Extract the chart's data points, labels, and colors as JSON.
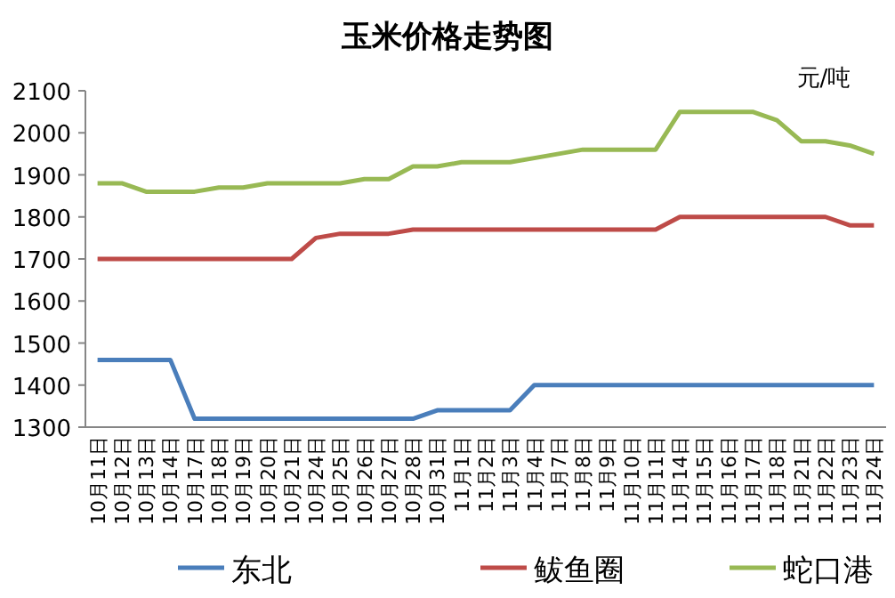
{
  "chart_data": {
    "type": "line",
    "title": "玉米价格走势图",
    "annotations": [
      "元/吨"
    ],
    "categories": [
      "10月11日",
      "10月12日",
      "10月13日",
      "10月14日",
      "10月17日",
      "10月18日",
      "10月19日",
      "10月20日",
      "10月21日",
      "10月24日",
      "10月25日",
      "10月26日",
      "10月27日",
      "10月28日",
      "10月31日",
      "11月1日",
      "11月2日",
      "11月3日",
      "11月4日",
      "11月7日",
      "11月8日",
      "11月9日",
      "11月10日",
      "11月11日",
      "11月14日",
      "11月15日",
      "11月16日",
      "11月17日",
      "11月18日",
      "11月21日",
      "11月22日",
      "11月23日",
      "11月24日"
    ],
    "series": [
      {
        "name": "东北",
        "color": "#4a7ebb",
        "values": [
          1460,
          1460,
          1460,
          1460,
          1320,
          1320,
          1320,
          1320,
          1320,
          1320,
          1320,
          1320,
          1320,
          1320,
          1340,
          1340,
          1340,
          1340,
          1400,
          1400,
          1400,
          1400,
          1400,
          1400,
          1400,
          1400,
          1400,
          1400,
          1400,
          1400,
          1400,
          1400,
          1400
        ]
      },
      {
        "name": "鲅鱼圈",
        "color": "#be4b48",
        "values": [
          1700,
          1700,
          1700,
          1700,
          1700,
          1700,
          1700,
          1700,
          1700,
          1750,
          1760,
          1760,
          1760,
          1770,
          1770,
          1770,
          1770,
          1770,
          1770,
          1770,
          1770,
          1770,
          1770,
          1770,
          1800,
          1800,
          1800,
          1800,
          1800,
          1800,
          1800,
          1780,
          1780
        ]
      },
      {
        "name": "蛇口港",
        "color": "#98b954",
        "values": [
          1880,
          1880,
          1860,
          1860,
          1860,
          1870,
          1870,
          1880,
          1880,
          1880,
          1880,
          1890,
          1890,
          1920,
          1920,
          1930,
          1930,
          1930,
          1940,
          1950,
          1960,
          1960,
          1960,
          1960,
          2050,
          2050,
          2050,
          2050,
          2030,
          1980,
          1980,
          1970,
          1950
        ]
      }
    ],
    "ylim": [
      1300,
      2100
    ],
    "yticks": [
      1300,
      1400,
      1500,
      1600,
      1700,
      1800,
      1900,
      2000,
      2100
    ],
    "grid": false,
    "legend": "bottom",
    "marker": "none",
    "line_style": "solid"
  }
}
